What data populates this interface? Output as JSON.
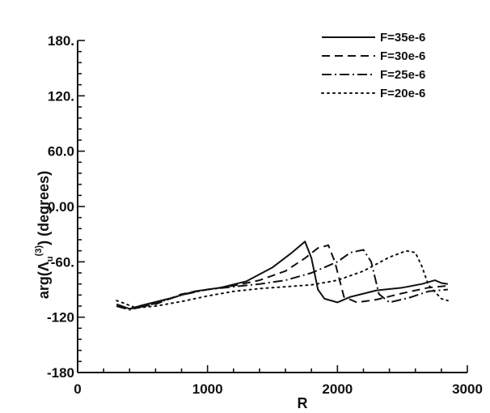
{
  "chart_data": {
    "type": "line",
    "title": "",
    "xlabel": "R",
    "ylabel_parts": {
      "prefix": "arg(Λ",
      "sub": "u",
      "sup": "(3)",
      "suffix": ")   (degrees)"
    },
    "xlim": [
      0,
      3000
    ],
    "ylim": [
      -180,
      180
    ],
    "xticks": [
      0,
      1000,
      2000,
      3000
    ],
    "xtick_labels": [
      "0",
      "1000",
      "2000",
      "3000"
    ],
    "yticks": [
      180,
      120,
      60,
      0,
      -60,
      -120,
      -180
    ],
    "ytick_labels": [
      "180.",
      "120.",
      "60.0",
      "0.00",
      "-60.",
      "-120",
      "-180"
    ],
    "grid": false,
    "legend_position": "top-right",
    "series": [
      {
        "name": "F=35e-6",
        "dash": "solid",
        "points": [
          [
            300,
            -106
          ],
          [
            400,
            -111
          ],
          [
            500,
            -107
          ],
          [
            700,
            -100
          ],
          [
            900,
            -92
          ],
          [
            1100,
            -88
          ],
          [
            1300,
            -81
          ],
          [
            1500,
            -66
          ],
          [
            1650,
            -50
          ],
          [
            1750,
            -38
          ],
          [
            1800,
            -56
          ],
          [
            1850,
            -90
          ],
          [
            1900,
            -100
          ],
          [
            2000,
            -104
          ],
          [
            2100,
            -98
          ],
          [
            2300,
            -91
          ],
          [
            2500,
            -88
          ],
          [
            2650,
            -84
          ],
          [
            2750,
            -80
          ],
          [
            2800,
            -83
          ],
          [
            2850,
            -84
          ]
        ]
      },
      {
        "name": "F=30e-6",
        "dash": "dashed",
        "points": [
          [
            300,
            -108
          ],
          [
            400,
            -111
          ],
          [
            600,
            -106
          ],
          [
            800,
            -95
          ],
          [
            1000,
            -90
          ],
          [
            1200,
            -86
          ],
          [
            1400,
            -80
          ],
          [
            1600,
            -70
          ],
          [
            1750,
            -56
          ],
          [
            1850,
            -45
          ],
          [
            1930,
            -42
          ],
          [
            1980,
            -60
          ],
          [
            2050,
            -98
          ],
          [
            2150,
            -104
          ],
          [
            2300,
            -101
          ],
          [
            2500,
            -94
          ],
          [
            2700,
            -88
          ],
          [
            2850,
            -86
          ]
        ]
      },
      {
        "name": "F=25e-6",
        "dash": "dashdot",
        "points": [
          [
            300,
            -108
          ],
          [
            400,
            -112
          ],
          [
            600,
            -105
          ],
          [
            800,
            -96
          ],
          [
            1000,
            -90
          ],
          [
            1200,
            -87
          ],
          [
            1400,
            -84
          ],
          [
            1600,
            -80
          ],
          [
            1800,
            -72
          ],
          [
            2000,
            -60
          ],
          [
            2100,
            -50
          ],
          [
            2200,
            -47
          ],
          [
            2260,
            -60
          ],
          [
            2320,
            -95
          ],
          [
            2400,
            -104
          ],
          [
            2550,
            -99
          ],
          [
            2700,
            -92
          ],
          [
            2850,
            -90
          ]
        ]
      },
      {
        "name": "F=20e-6",
        "dash": "dotted",
        "points": [
          [
            300,
            -102
          ],
          [
            340,
            -104
          ],
          [
            450,
            -110
          ],
          [
            600,
            -108
          ],
          [
            800,
            -103
          ],
          [
            1000,
            -97
          ],
          [
            1200,
            -92
          ],
          [
            1400,
            -89
          ],
          [
            1600,
            -87
          ],
          [
            1800,
            -85
          ],
          [
            2000,
            -80
          ],
          [
            2200,
            -70
          ],
          [
            2400,
            -55
          ],
          [
            2530,
            -48
          ],
          [
            2600,
            -50
          ],
          [
            2650,
            -65
          ],
          [
            2700,
            -85
          ],
          [
            2800,
            -100
          ],
          [
            2850,
            -102
          ]
        ]
      }
    ]
  }
}
